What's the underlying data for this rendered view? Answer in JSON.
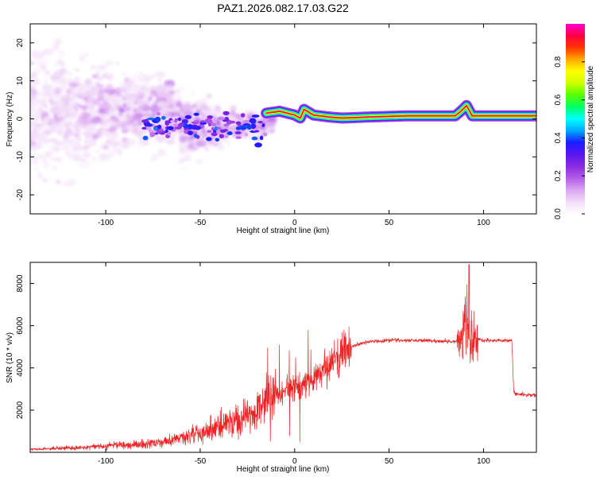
{
  "title": "PAZ1.2026.082.17.03.G22",
  "colors": {
    "snr_line": "#ee2222",
    "colormap": [
      "#ffffff",
      "#f2ddf8",
      "#dba6f0",
      "#b45ee8",
      "#8a2be2",
      "#5a18f0",
      "#1a1aff",
      "#00aaff",
      "#00ffff",
      "#00ff66",
      "#55ff00",
      "#ccff00",
      "#ffff00",
      "#ffaa00",
      "#ff3300",
      "#ff0044",
      "#ff00cc"
    ]
  },
  "chart_data": [
    {
      "type": "heatmap",
      "title": "PAZ1.2026.082.17.03.G22",
      "xlabel": "Height of straight line (km)",
      "ylabel": "Frequency (Hz)",
      "xlim": [
        -140,
        128
      ],
      "ylim": [
        -25,
        25
      ],
      "x_ticks": [
        "-100",
        "-50",
        "0",
        "50",
        "100"
      ],
      "y_ticks": [
        "-20",
        "-10",
        "0",
        "10",
        "20"
      ],
      "grid": false,
      "colorbar": {
        "label": "Normalized spectral amplitude",
        "range": [
          0.0,
          1.0
        ],
        "ticks": [
          "0.0",
          "0.2",
          "0.4",
          "0.6",
          "0.8"
        ]
      },
      "ridge": [
        {
          "x": -15,
          "freq": 1.5
        },
        {
          "x": -8,
          "freq": 2.0
        },
        {
          "x": 0,
          "freq": 1.0
        },
        {
          "x": 3,
          "freq": 0.2
        },
        {
          "x": 5,
          "freq": 2.5
        },
        {
          "x": 10,
          "freq": 1.0
        },
        {
          "x": 18,
          "freq": 0.5
        },
        {
          "x": 25,
          "freq": 0.2
        },
        {
          "x": 40,
          "freq": 0.5
        },
        {
          "x": 60,
          "freq": 0.8
        },
        {
          "x": 85,
          "freq": 0.8
        },
        {
          "x": 88,
          "freq": 2.0
        },
        {
          "x": 91,
          "freq": 3.5
        },
        {
          "x": 94,
          "freq": 0.8
        },
        {
          "x": 110,
          "freq": 0.8
        },
        {
          "x": 128,
          "freq": 0.8
        }
      ]
    },
    {
      "type": "line",
      "xlabel": "Height of straight line (km)",
      "ylabel": "SNR (10 * v/v)",
      "xlim": [
        -140,
        128
      ],
      "ylim": [
        0,
        9000
      ],
      "x_ticks": [
        "-100",
        "-50",
        "0",
        "50",
        "100"
      ],
      "y_ticks": [
        "2000",
        "4000",
        "6000",
        "8000"
      ],
      "grid": false,
      "series": [
        {
          "name": "SNR",
          "x": [
            -140,
            -120,
            -100,
            -80,
            -70,
            -60,
            -50,
            -40,
            -30,
            -25,
            -20,
            -15,
            -12,
            -10,
            -5,
            0,
            5,
            10,
            15,
            20,
            25,
            30,
            35,
            40,
            50,
            60,
            70,
            80,
            85,
            88,
            90,
            91,
            92,
            93,
            94,
            96,
            100,
            110,
            115,
            116,
            117,
            120,
            128
          ],
          "values": [
            150,
            200,
            300,
            400,
            500,
            700,
            900,
            1200,
            1500,
            1800,
            2000,
            2300,
            2500,
            2700,
            3000,
            3100,
            3300,
            3600,
            3900,
            4200,
            4600,
            5000,
            5150,
            5250,
            5300,
            5300,
            5300,
            5250,
            5250,
            5400,
            6000,
            6500,
            5300,
            4800,
            5200,
            5400,
            5300,
            5300,
            5300,
            2900,
            2750,
            2750,
            2700
          ]
        }
      ]
    }
  ]
}
